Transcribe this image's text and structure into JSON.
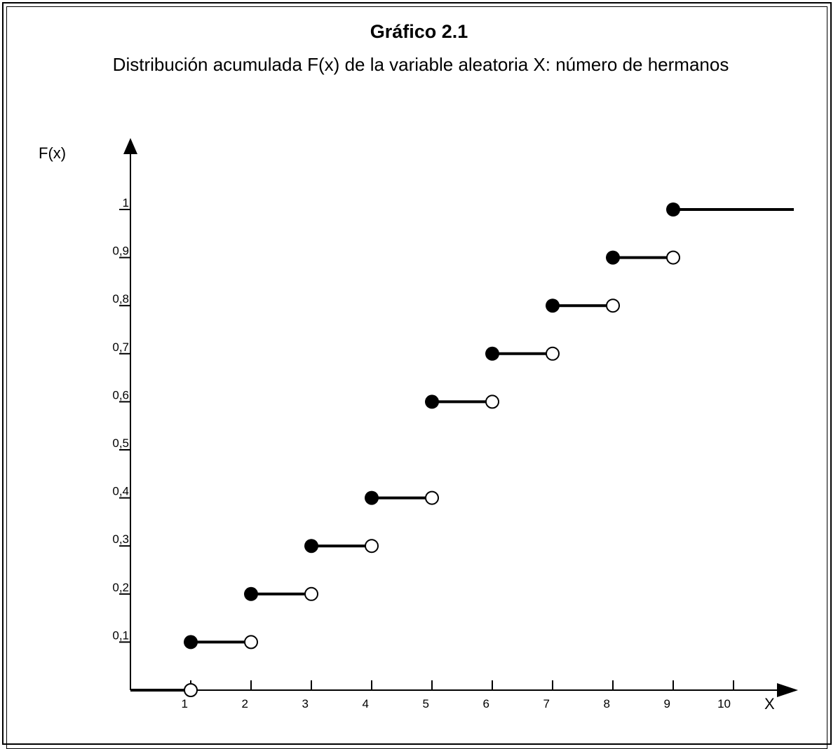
{
  "title": "Gráfico 2.1",
  "subtitle": "Distribución acumulada F(x) de la variable aleatoria X: número de hermanos",
  "chart_data": {
    "type": "step",
    "xlabel": "X",
    "ylabel": "F(x)",
    "x_ticks": [
      "1",
      "2",
      "3",
      "4",
      "5",
      "6",
      "7",
      "8",
      "9",
      "10"
    ],
    "y_ticks": [
      "0,1",
      "0,2",
      "0,3",
      "0,4",
      "0,5",
      "0,6",
      "0,7",
      "0,8",
      "0,9",
      "1"
    ],
    "xlim": [
      0,
      11
    ],
    "ylim": [
      0,
      1.1
    ],
    "steps": [
      {
        "x_start": 0,
        "x_end": 1,
        "y": 0
      },
      {
        "x_start": 1,
        "x_end": 2,
        "y": 0.1
      },
      {
        "x_start": 2,
        "x_end": 3,
        "y": 0.2
      },
      {
        "x_start": 3,
        "x_end": 4,
        "y": 0.3
      },
      {
        "x_start": 4,
        "x_end": 5,
        "y": 0.4
      },
      {
        "x_start": 5,
        "x_end": 6,
        "y": 0.6
      },
      {
        "x_start": 6,
        "x_end": 7,
        "y": 0.7
      },
      {
        "x_start": 7,
        "x_end": 8,
        "y": 0.8
      },
      {
        "x_start": 8,
        "x_end": 9,
        "y": 0.9
      },
      {
        "x_start": 9,
        "x_end": 11,
        "y": 1
      }
    ],
    "grid": false,
    "line_color": "#000000"
  }
}
